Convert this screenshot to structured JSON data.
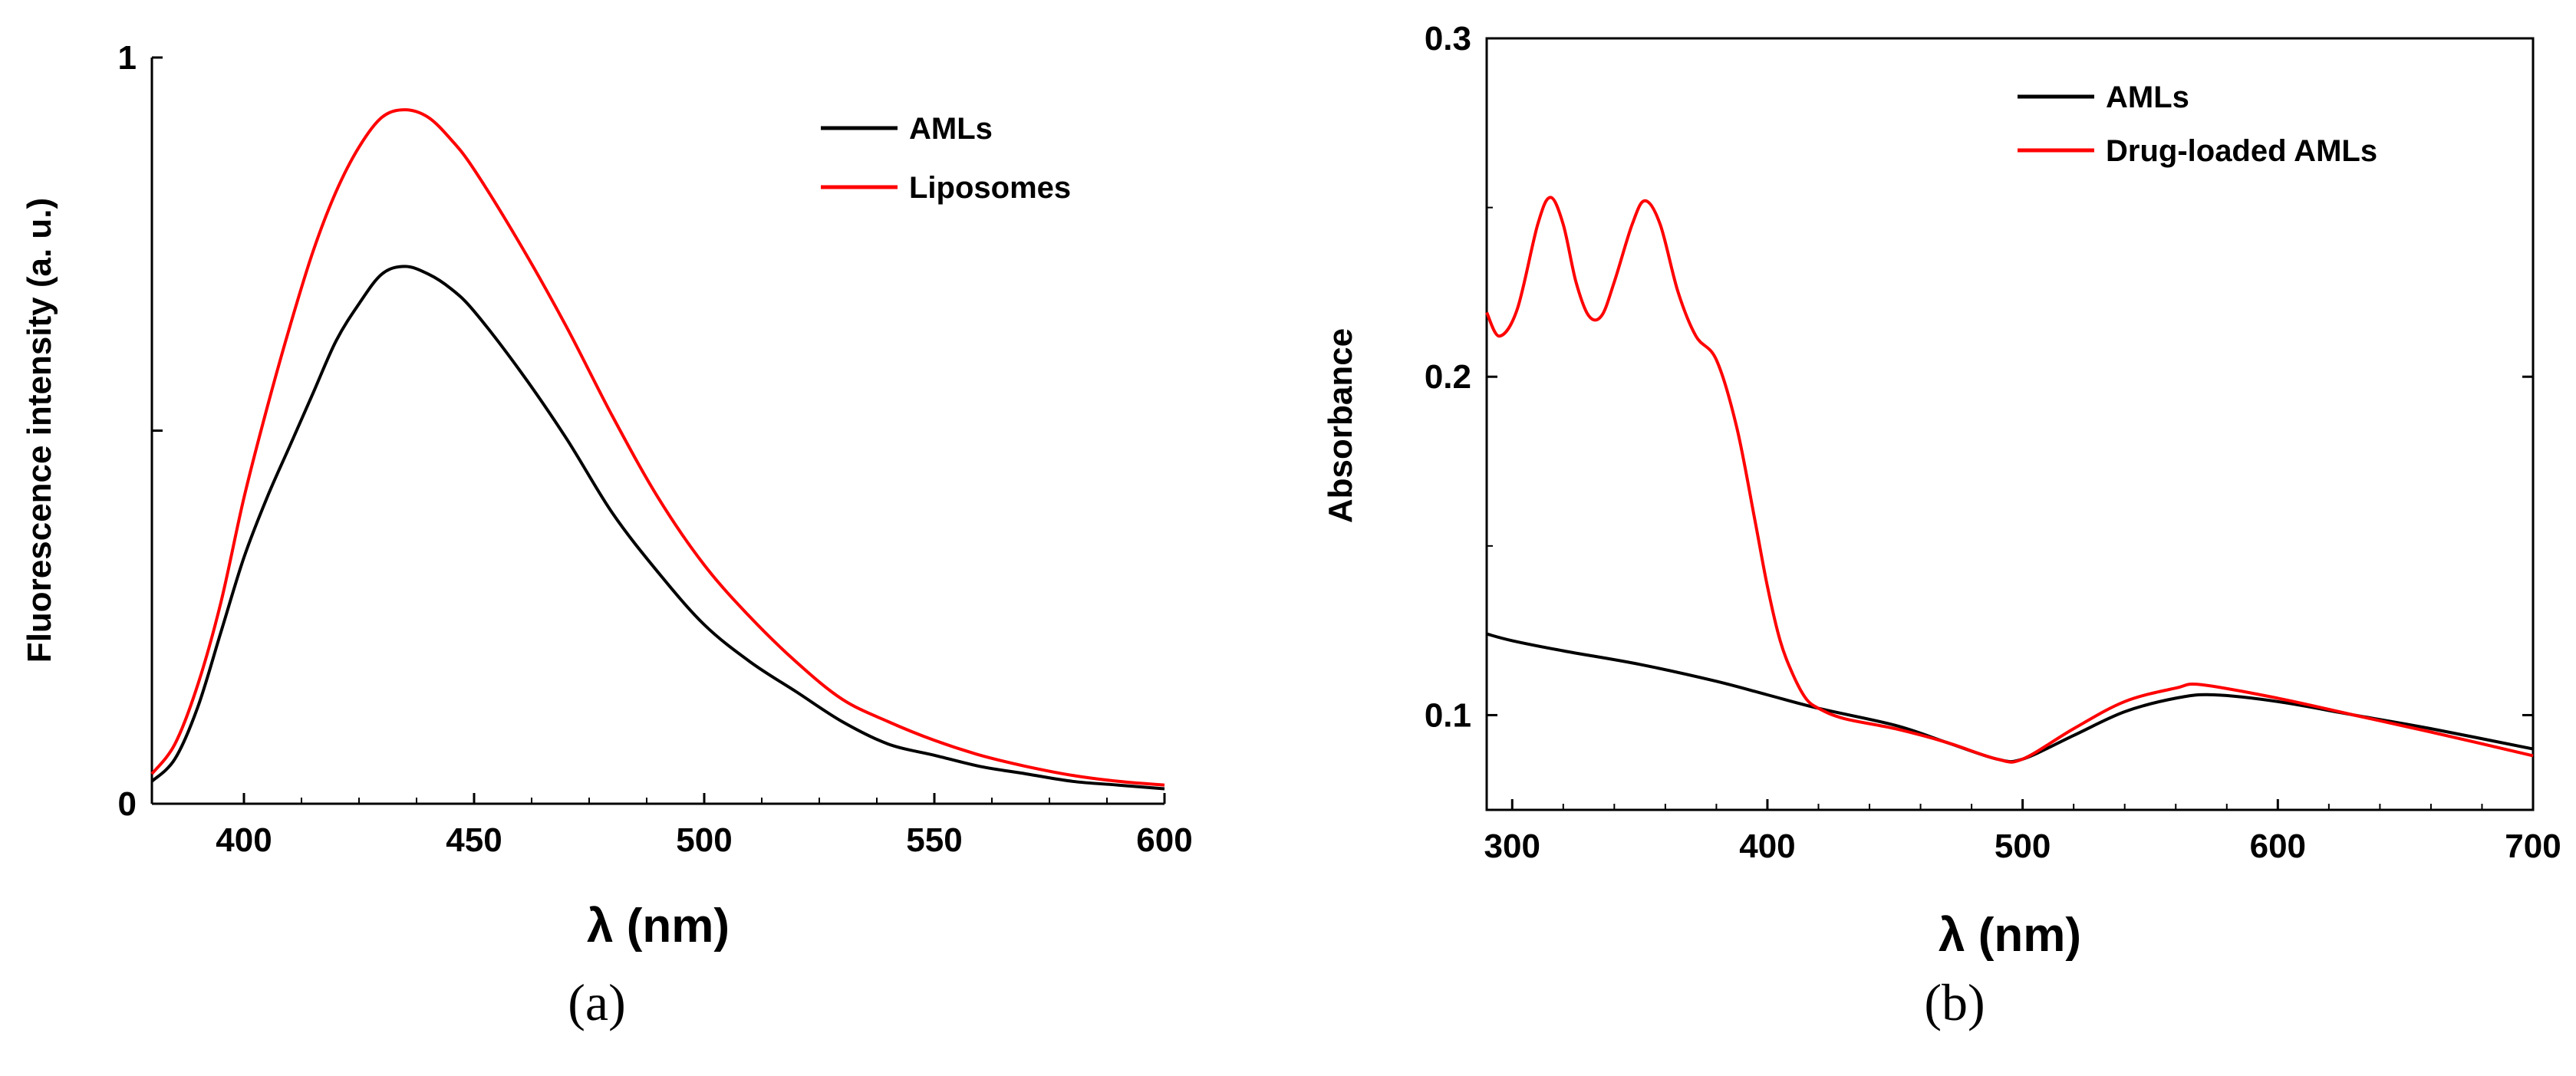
{
  "chart_data": [
    {
      "id": "a",
      "type": "line",
      "panel_label": "(a)",
      "title": "",
      "xlabel": "λ (nm)",
      "ylabel": "Fluorescence intensity (a. u.)",
      "xlim": [
        380,
        600
      ],
      "ylim": [
        0,
        1
      ],
      "x_ticks": [
        400,
        450,
        500,
        550,
        600
      ],
      "y_ticks": [
        0,
        1
      ],
      "y_ticks_unlabeled": [
        0.5
      ],
      "grid": false,
      "legend_position": "top-right",
      "series": [
        {
          "name": "AMLs",
          "color": "#000000",
          "x": [
            380,
            385,
            390,
            395,
            400,
            405,
            410,
            415,
            420,
            425,
            430,
            435,
            440,
            445,
            450,
            460,
            470,
            480,
            490,
            500,
            510,
            520,
            530,
            540,
            550,
            560,
            570,
            580,
            590,
            600
          ],
          "y": [
            0.03,
            0.06,
            0.13,
            0.23,
            0.33,
            0.41,
            0.48,
            0.55,
            0.62,
            0.67,
            0.71,
            0.72,
            0.71,
            0.69,
            0.66,
            0.58,
            0.49,
            0.39,
            0.31,
            0.24,
            0.19,
            0.15,
            0.11,
            0.08,
            0.065,
            0.05,
            0.04,
            0.03,
            0.025,
            0.02
          ]
        },
        {
          "name": "Liposomes",
          "color": "#ff0000",
          "x": [
            380,
            385,
            390,
            395,
            400,
            405,
            410,
            415,
            420,
            425,
            430,
            435,
            440,
            445,
            450,
            460,
            470,
            480,
            490,
            500,
            510,
            520,
            530,
            540,
            550,
            560,
            570,
            580,
            590,
            600
          ],
          "y": [
            0.04,
            0.08,
            0.16,
            0.27,
            0.41,
            0.53,
            0.64,
            0.74,
            0.82,
            0.88,
            0.92,
            0.93,
            0.92,
            0.89,
            0.85,
            0.75,
            0.64,
            0.52,
            0.41,
            0.32,
            0.25,
            0.19,
            0.14,
            0.11,
            0.085,
            0.065,
            0.05,
            0.038,
            0.03,
            0.025
          ]
        }
      ]
    },
    {
      "id": "b",
      "type": "line",
      "panel_label": "(b)",
      "title": "",
      "xlabel": "λ (nm)",
      "ylabel": "Absorbance",
      "xlim": [
        290,
        700
      ],
      "ylim": [
        0.072,
        0.3
      ],
      "x_ticks": [
        300,
        400,
        500,
        600,
        700
      ],
      "y_ticks": [
        0.1,
        0.2,
        0.3
      ],
      "y_tick_labels": [
        "0.1",
        "0.2",
        "0.3"
      ],
      "grid": false,
      "legend_position": "top-right",
      "series": [
        {
          "name": "AMLs",
          "color": "#000000",
          "x": [
            290,
            300,
            320,
            350,
            380,
            400,
            420,
            450,
            470,
            490,
            500,
            520,
            540,
            560,
            575,
            600,
            630,
            660,
            700
          ],
          "y": [
            0.124,
            0.122,
            0.119,
            0.115,
            0.11,
            0.106,
            0.102,
            0.097,
            0.092,
            0.087,
            0.087,
            0.094,
            0.101,
            0.105,
            0.106,
            0.104,
            0.1,
            0.096,
            0.09
          ]
        },
        {
          "name": "Drug-loaded AMLs",
          "color": "#ff0000",
          "x": [
            290,
            295,
            302,
            310,
            315,
            320,
            325,
            330,
            335,
            340,
            347,
            352,
            358,
            365,
            372,
            380,
            388,
            395,
            400,
            405,
            410,
            415,
            420,
            430,
            450,
            470,
            490,
            500,
            520,
            540,
            560,
            570,
            600,
            630,
            660,
            700
          ],
          "y": [
            0.219,
            0.212,
            0.22,
            0.245,
            0.253,
            0.245,
            0.228,
            0.218,
            0.218,
            0.228,
            0.245,
            0.252,
            0.245,
            0.225,
            0.212,
            0.205,
            0.185,
            0.158,
            0.138,
            0.122,
            0.112,
            0.105,
            0.102,
            0.099,
            0.096,
            0.092,
            0.087,
            0.087,
            0.096,
            0.104,
            0.108,
            0.109,
            0.105,
            0.1,
            0.095,
            0.088
          ]
        }
      ]
    }
  ]
}
